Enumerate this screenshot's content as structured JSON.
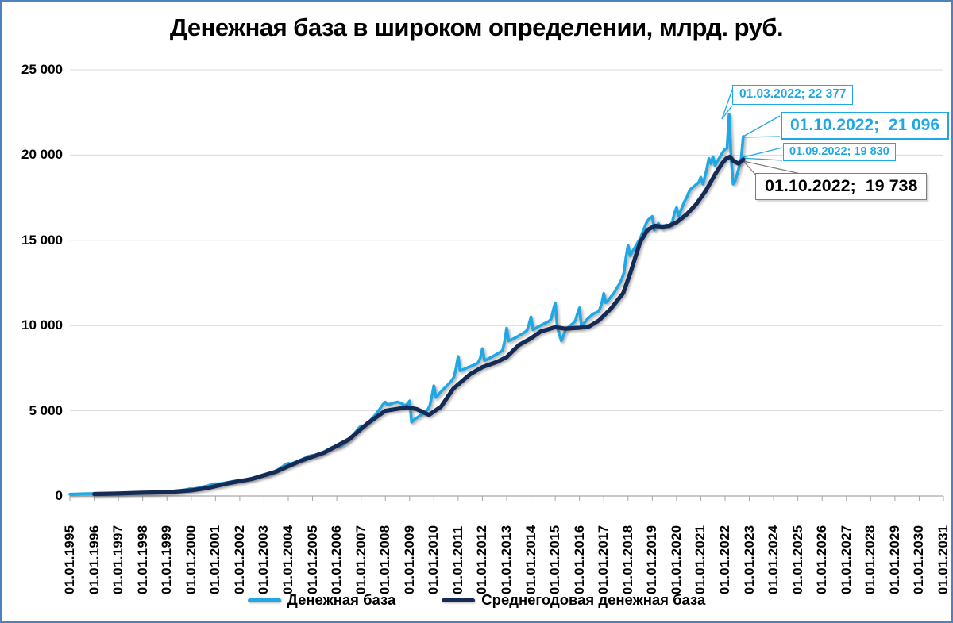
{
  "frame": {
    "border_color": "#4F81BD",
    "background": "#FFFFFF"
  },
  "legend": {
    "items": [
      {
        "label": "Денежная база",
        "color": "#1FA8E4"
      },
      {
        "label": "Среднегодовая денежная база",
        "color": "#152A55"
      }
    ]
  },
  "chart_data": {
    "type": "line",
    "title": "Денежная база в широком определении, млрд. руб.",
    "grid": true,
    "legend_position": "bottom",
    "y_axis": {
      "range": [
        0,
        25000
      ],
      "ticks": [
        {
          "label": "0",
          "value": 0
        },
        {
          "label": "5 000",
          "value": 5000
        },
        {
          "label": "10 000",
          "value": 10000
        },
        {
          "label": "15 000",
          "value": 15000
        },
        {
          "label": "20 000",
          "value": 20000
        },
        {
          "label": "25 000",
          "value": 25000
        }
      ]
    },
    "x_axis": {
      "start_year": 1995,
      "end_year": 2031,
      "labels": [
        "01.01.1995",
        "01.01.1996",
        "01.01.1997",
        "01.01.1998",
        "01.01.1999",
        "01.01.2000",
        "01.01.2001",
        "01.01.2002",
        "01.01.2003",
        "01.01.2004",
        "01.01.2005",
        "01.01.2006",
        "01.01.2007",
        "01.01.2008",
        "01.01.2009",
        "01.01.2010",
        "01.01.2011",
        "01.01.2012",
        "01.01.2013",
        "01.01.2014",
        "01.01.2015",
        "01.01.2016",
        "01.01.2017",
        "01.01.2018",
        "01.01.2019",
        "01.01.2020",
        "01.01.2021",
        "01.01.2022",
        "01.01.2023",
        "01.01.2024",
        "01.01.2025",
        "01.01.2026",
        "01.01.2027",
        "01.01.2028",
        "01.01.2029",
        "01.01.2030",
        "01.01.2031"
      ]
    },
    "series": [
      {
        "name": "Денежная база",
        "color": "#1FA8E4",
        "start_year": 1995,
        "monthly_values": [
          [
            104,
            107,
            111,
            116,
            120,
            124,
            127,
            130,
            132,
            134,
            136,
            139
          ],
          [
            130,
            128,
            132,
            136,
            140,
            143,
            146,
            149,
            152,
            155,
            158,
            161
          ],
          [
            163,
            160,
            165,
            171,
            177,
            183,
            189,
            194,
            198,
            202,
            206,
            209
          ],
          [
            210,
            206,
            208,
            210,
            212,
            214,
            216,
            221,
            230,
            240,
            251,
            260
          ],
          [
            264,
            262,
            270,
            280,
            292,
            305,
            318,
            332,
            348,
            368,
            392,
            415
          ],
          [
            427,
            425,
            440,
            460,
            484,
            510,
            538,
            567,
            598,
            632,
            668,
            700
          ],
          [
            722,
            710,
            722,
            738,
            756,
            776,
            797,
            819,
            842,
            866,
            891,
            912
          ],
          [
            928,
            916,
            934,
            956,
            981,
            1008,
            1038,
            1070,
            1104,
            1140,
            1178,
            1215
          ],
          [
            1233,
            1226,
            1260,
            1308,
            1362,
            1421,
            1486,
            1556,
            1631,
            1711,
            1796,
            1870
          ],
          [
            1914,
            1890,
            1920,
            1958,
            2002,
            2052,
            2106,
            2161,
            2216,
            2271,
            2326,
            2360
          ],
          [
            2380,
            2350,
            2390,
            2438,
            2493,
            2553,
            2617,
            2682,
            2747,
            2808,
            2863,
            2898
          ],
          [
            2914,
            2880,
            2940,
            3018,
            3106,
            3205,
            3314,
            3434,
            3564,
            3704,
            3854,
            4005
          ],
          [
            4122,
            4080,
            4160,
            4258,
            4368,
            4488,
            4618,
            4758,
            4908,
            5068,
            5238,
            5400
          ],
          [
            5513,
            5340,
            5380,
            5420,
            5455,
            5490,
            5515,
            5480,
            5430,
            5360,
            5310,
            5420
          ],
          [
            5579,
            4331,
            4450,
            4550,
            4620,
            4700,
            4780,
            4870,
            4970,
            5080,
            5300,
            5850
          ],
          [
            6467,
            5785,
            5900,
            6050,
            6180,
            6300,
            6420,
            6540,
            6660,
            6800,
            7000,
            7500
          ],
          [
            8190,
            7350,
            7400,
            7450,
            7500,
            7550,
            7600,
            7650,
            7700,
            7750,
            7850,
            8100
          ],
          [
            8644,
            7950,
            8000,
            8060,
            8120,
            8180,
            8250,
            8320,
            8390,
            8460,
            8560,
            9100
          ],
          [
            9853,
            9100,
            9150,
            9210,
            9270,
            9330,
            9400,
            9470,
            9540,
            9610,
            9710,
            10050
          ],
          [
            10504,
            9750,
            9820,
            9890,
            9960,
            10020,
            10080,
            10140,
            10200,
            10260,
            10400,
            10900
          ],
          [
            11332,
            9900,
            9500,
            9100,
            9400,
            9700,
            9850,
            9950,
            10050,
            10150,
            10300,
            10700
          ],
          [
            11043,
            9900,
            10100,
            10250,
            10400,
            10500,
            10600,
            10700,
            10750,
            10800,
            10950,
            11300
          ],
          [
            11883,
            11350,
            11450,
            11600,
            11750,
            11900,
            12100,
            12300,
            12500,
            12750,
            13100,
            14000
          ],
          [
            14702,
            14100,
            14300,
            14500,
            14700,
            14900,
            15100,
            15400,
            15700,
            16000,
            16200,
            16300
          ],
          [
            16400,
            15600,
            15800,
            16000,
            15800,
            15700,
            15800,
            15900,
            15800,
            15900,
            16100,
            16600
          ],
          [
            16917,
            16400,
            16700,
            17000,
            17300,
            17500,
            17800,
            18000,
            18100,
            18200,
            18300,
            18400
          ],
          [
            18700,
            18300,
            18700,
            19200,
            19800,
            19500,
            19900,
            19400,
            19600,
            19800,
            20000,
            20200
          ],
          [
            20340,
            20400,
            22377,
            19800,
            18300,
            18500,
            18900,
            19300,
            19830,
            21096
          ]
        ]
      },
      {
        "name": "Среднегодовая денежная база",
        "color": "#152A55",
        "points": [
          [
            1996.0,
            115
          ],
          [
            1997.0,
            150
          ],
          [
            1998.0,
            192
          ],
          [
            1998.6,
            210
          ],
          [
            1999.3,
            255
          ],
          [
            2000.0,
            330
          ],
          [
            2000.7,
            480
          ],
          [
            2001.5,
            740
          ],
          [
            2002.5,
            1000
          ],
          [
            2003.5,
            1430
          ],
          [
            2004.5,
            2060
          ],
          [
            2005.5,
            2560
          ],
          [
            2006.5,
            3320
          ],
          [
            2007.3,
            4300
          ],
          [
            2008.0,
            5000
          ],
          [
            2008.9,
            5210
          ],
          [
            2009.3,
            5100
          ],
          [
            2009.8,
            4760
          ],
          [
            2010.3,
            5250
          ],
          [
            2010.8,
            6300
          ],
          [
            2011.5,
            7150
          ],
          [
            2012.0,
            7560
          ],
          [
            2012.6,
            7870
          ],
          [
            2013.0,
            8150
          ],
          [
            2013.5,
            8850
          ],
          [
            2014.0,
            9250
          ],
          [
            2014.4,
            9650
          ],
          [
            2015.0,
            9900
          ],
          [
            2015.4,
            9820
          ],
          [
            2016.0,
            9870
          ],
          [
            2016.4,
            9950
          ],
          [
            2016.8,
            10300
          ],
          [
            2017.3,
            11000
          ],
          [
            2017.8,
            11900
          ],
          [
            2018.1,
            13100
          ],
          [
            2018.5,
            14900
          ],
          [
            2018.8,
            15600
          ],
          [
            2019.1,
            15850
          ],
          [
            2019.4,
            15800
          ],
          [
            2019.7,
            15850
          ],
          [
            2020.0,
            16050
          ],
          [
            2020.4,
            16500
          ],
          [
            2020.8,
            17100
          ],
          [
            2021.2,
            17900
          ],
          [
            2021.6,
            18900
          ],
          [
            2021.9,
            19550
          ],
          [
            2022.05,
            19800
          ],
          [
            2022.2,
            19900
          ],
          [
            2022.35,
            19650
          ],
          [
            2022.55,
            19500
          ],
          [
            2022.75,
            19738
          ]
        ]
      }
    ],
    "data_labels": [
      {
        "series": "Денежная база",
        "date": "01.03.2022",
        "value": 22377,
        "text": "01.03.2022; 22 377"
      },
      {
        "series": "Денежная база",
        "date": "01.10.2022",
        "value": 21096,
        "text": "01.10.2022;  21 096"
      },
      {
        "series": "Денежная база",
        "date": "01.09.2022",
        "value": 19830,
        "text": "01.09.2022; 19 830"
      },
      {
        "series": "Среднегодовая денежная база",
        "date": "01.10.2022",
        "value": 19738,
        "text": "01.10.2022;  19 738"
      }
    ]
  }
}
